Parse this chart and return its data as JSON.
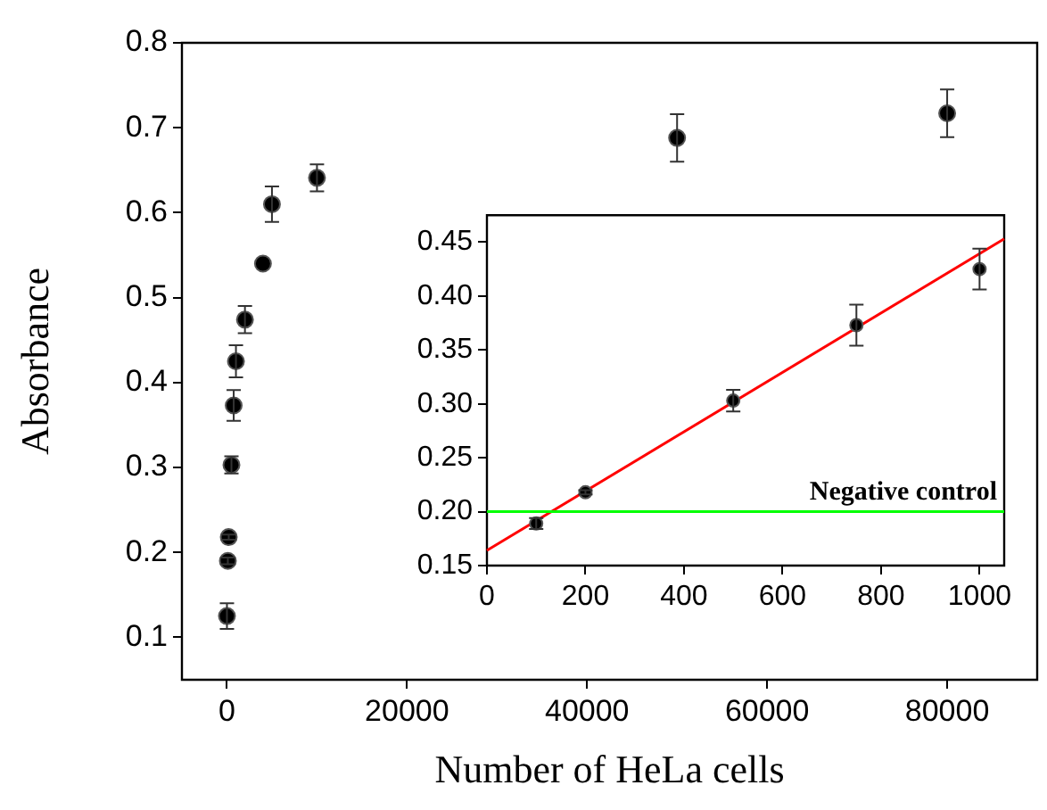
{
  "chart_data": [
    {
      "type": "scatter",
      "xlabel": "Number of HeLa cells",
      "ylabel": "Absorbance",
      "xlim": [
        -5000,
        90000
      ],
      "xticks": [
        0,
        20000,
        40000,
        60000,
        80000
      ],
      "ylim": [
        0.05,
        0.8
      ],
      "yticks": [
        0.1,
        0.2,
        0.3,
        0.4,
        0.5,
        0.6,
        0.7,
        0.8
      ],
      "grid": false,
      "legend": false,
      "marker": "circle",
      "series": [
        {
          "color": "#000000",
          "x": [
            0,
            100,
            200,
            500,
            750,
            1000,
            2000,
            4000,
            5000,
            10000,
            50000,
            80000
          ],
          "values": [
            0.125,
            0.19,
            0.218,
            0.303,
            0.373,
            0.425,
            0.474,
            0.54,
            0.61,
            0.641,
            0.688,
            0.717
          ],
          "errors": [
            0.015,
            0.004,
            0.003,
            0.01,
            0.018,
            0.019,
            0.016,
            null,
            0.021,
            0.016,
            0.028,
            0.028
          ]
        }
      ]
    },
    {
      "type": "scatter",
      "xlim": [
        0,
        1050
      ],
      "xticks": [
        0,
        200,
        400,
        600,
        800,
        1000
      ],
      "ylim": [
        0.15,
        0.475
      ],
      "yticks": [
        0.15,
        {
          "value": 0.2,
          "label": "0.20"
        },
        0.25,
        {
          "value": 0.3,
          "label": "0.30"
        },
        0.35,
        {
          "value": 0.4,
          "label": "0.40"
        },
        0.45
      ],
      "grid": false,
      "legend": false,
      "series": [
        {
          "color": "#000000",
          "marker": "circle",
          "x": [
            100,
            200,
            500,
            750,
            1000
          ],
          "values": [
            0.189,
            0.218,
            0.303,
            0.373,
            0.425
          ],
          "errors": [
            0.005,
            0.002,
            0.01,
            0.019,
            0.019
          ]
        },
        {
          "type": "line",
          "color": "#ff0000",
          "marker": "none",
          "x": [
            0,
            1050
          ],
          "values": [
            0.164,
            0.453
          ]
        }
      ],
      "ref_lines": [
        {
          "axis": "y",
          "value": 0.2,
          "label": "Negative control",
          "color": "#00ff00"
        }
      ]
    }
  ]
}
